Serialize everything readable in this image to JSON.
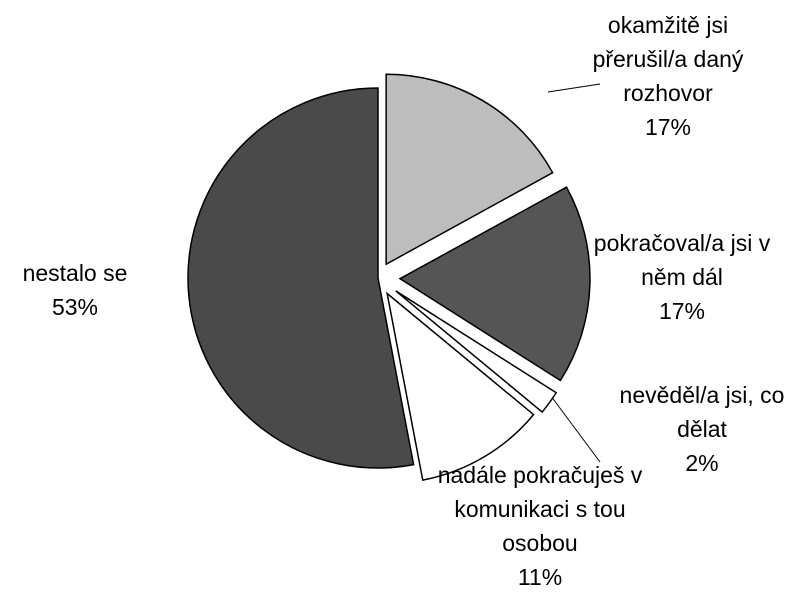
{
  "chart_data": {
    "type": "pie",
    "categories": [
      "okamžitě jsi přerušil/a daný rozhovor",
      "pokračoval/a jsi v něm dál",
      "nevěděl/a jsi, co dělat",
      "nadále pokračuješ v komunikaci s tou osobou",
      "nestalo se"
    ],
    "values": [
      17,
      17,
      2,
      11,
      53
    ],
    "value_labels": [
      "17%",
      "17%",
      "2%",
      "11%",
      "53%"
    ],
    "colors": [
      "#bdbdbd",
      "#555555",
      "#ffffff",
      "#ffffff",
      "#4a4a4a"
    ]
  }
}
